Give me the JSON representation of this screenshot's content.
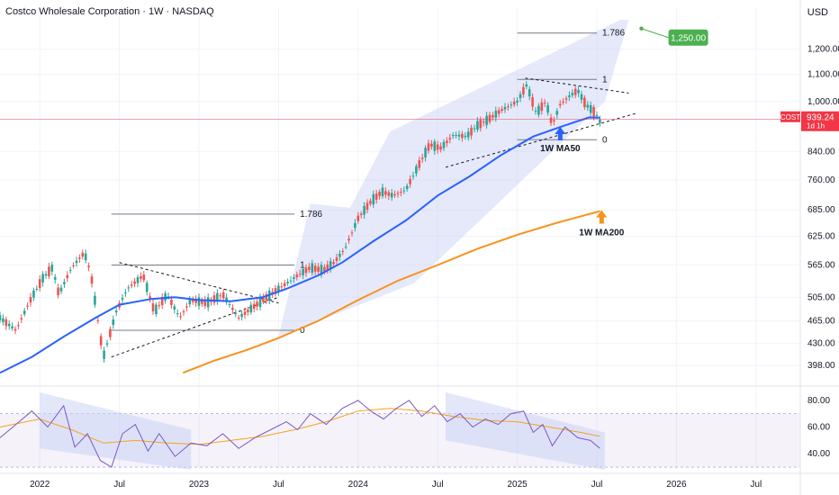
{
  "header": {
    "title": "Costco Wholesale Corporation · 1W · NASDAQ",
    "currency": "USD"
  },
  "colors": {
    "bull": "#26a69a",
    "bear": "#ef5350",
    "ma50": "#2962ff",
    "ma200": "#f7931a",
    "rsi": "#7e57c2",
    "rsi_ma": "#f7a21b",
    "channel": "#c5cff5",
    "price_line": "#f23645",
    "target_box": "#4caf50"
  },
  "chart_data": [
    {
      "type": "candlestick",
      "title": "Costco Wholesale Corporation · 1W · NASDAQ",
      "x_ticks": [
        "2022",
        "Jul",
        "2023",
        "Jul",
        "2024",
        "Jul",
        "2025",
        "Jul",
        "2026",
        "Jul"
      ],
      "y_ticks": [
        "1,200.00",
        "1,100.00",
        "1,000.00",
        "940.00",
        "840.00",
        "760.00",
        "685.00",
        "625.00",
        "565.00",
        "505.00",
        "465.00",
        "430.00",
        "398.00"
      ],
      "y_scale": "log",
      "ylim": [
        375,
        1330
      ],
      "x_range": [
        "2021-09",
        "2026-10"
      ],
      "current_price": {
        "symbol": "COST",
        "value": "939.24",
        "timer": "1d 1h"
      },
      "fib_levels_1": [
        {
          "label": "0",
          "price": 450
        },
        {
          "label": "1",
          "price": 565
        },
        {
          "label": "1.786",
          "price": 675
        }
      ],
      "fib_levels_2": [
        {
          "label": "0",
          "price": 875
        },
        {
          "label": "1",
          "price": 1080
        },
        {
          "label": "1.786",
          "price": 1270
        }
      ],
      "target": {
        "label": "1,250.00",
        "price": 1250
      },
      "annotations": [
        {
          "text": "1W MA50"
        },
        {
          "text": "1W MA200"
        }
      ],
      "ma50_path": [
        [
          2021.75,
          388
        ],
        [
          2021.95,
          410
        ],
        [
          2022.15,
          440
        ],
        [
          2022.35,
          470
        ],
        [
          2022.5,
          492
        ],
        [
          2022.7,
          502
        ],
        [
          2022.85,
          505
        ],
        [
          2023.0,
          500
        ],
        [
          2023.2,
          498
        ],
        [
          2023.4,
          505
        ],
        [
          2023.55,
          520
        ],
        [
          2023.75,
          545
        ],
        [
          2023.9,
          570
        ],
        [
          2024.1,
          615
        ],
        [
          2024.3,
          660
        ],
        [
          2024.5,
          720
        ],
        [
          2024.7,
          770
        ],
        [
          2024.9,
          830
        ],
        [
          2025.1,
          885
        ],
        [
          2025.3,
          920
        ],
        [
          2025.45,
          946
        ],
        [
          2025.52,
          945
        ]
      ],
      "ma200_path": [
        [
          2022.9,
          388
        ],
        [
          2023.1,
          405
        ],
        [
          2023.3,
          420
        ],
        [
          2023.5,
          438
        ],
        [
          2023.75,
          465
        ],
        [
          2024.0,
          500
        ],
        [
          2024.25,
          535
        ],
        [
          2024.5,
          565
        ],
        [
          2024.75,
          598
        ],
        [
          2025.0,
          628
        ],
        [
          2025.25,
          655
        ],
        [
          2025.52,
          682
        ]
      ],
      "candle_path": [
        [
          2021.75,
          470
        ],
        [
          2021.85,
          450
        ],
        [
          2021.95,
          505
        ],
        [
          2022.02,
          540
        ],
        [
          2022.08,
          560
        ],
        [
          2022.12,
          510
        ],
        [
          2022.2,
          560
        ],
        [
          2022.28,
          590
        ],
        [
          2022.32,
          550
        ],
        [
          2022.4,
          410
        ],
        [
          2022.48,
          480
        ],
        [
          2022.55,
          520
        ],
        [
          2022.65,
          545
        ],
        [
          2022.72,
          480
        ],
        [
          2022.8,
          510
        ],
        [
          2022.88,
          470
        ],
        [
          2022.95,
          500
        ],
        [
          2023.05,
          495
        ],
        [
          2023.15,
          510
        ],
        [
          2023.25,
          470
        ],
        [
          2023.35,
          490
        ],
        [
          2023.45,
          510
        ],
        [
          2023.55,
          530
        ],
        [
          2023.62,
          545
        ],
        [
          2023.7,
          560
        ],
        [
          2023.78,
          555
        ],
        [
          2023.85,
          570
        ],
        [
          2023.92,
          600
        ],
        [
          2024.0,
          665
        ],
        [
          2024.08,
          705
        ],
        [
          2024.15,
          730
        ],
        [
          2024.22,
          720
        ],
        [
          2024.3,
          735
        ],
        [
          2024.38,
          800
        ],
        [
          2024.45,
          860
        ],
        [
          2024.52,
          850
        ],
        [
          2024.6,
          890
        ],
        [
          2024.68,
          885
        ],
        [
          2024.75,
          920
        ],
        [
          2024.82,
          940
        ],
        [
          2024.9,
          970
        ],
        [
          2025.0,
          1000
        ],
        [
          2025.06,
          1060
        ],
        [
          2025.12,
          960
        ],
        [
          2025.18,
          1000
        ],
        [
          2025.22,
          920
        ],
        [
          2025.27,
          990
        ],
        [
          2025.33,
          1020
        ],
        [
          2025.38,
          1040
        ],
        [
          2025.43,
          990
        ],
        [
          2025.48,
          965
        ],
        [
          2025.52,
          939
        ]
      ]
    },
    {
      "type": "line",
      "ylabel": "",
      "y_ticks": [
        "80.00",
        "60.00",
        "40.00"
      ],
      "ylim": [
        28,
        88
      ],
      "rsi_path": [
        [
          2021.75,
          52
        ],
        [
          2021.85,
          62
        ],
        [
          2021.95,
          72
        ],
        [
          2022.05,
          60
        ],
        [
          2022.15,
          76
        ],
        [
          2022.22,
          45
        ],
        [
          2022.3,
          55
        ],
        [
          2022.38,
          35
        ],
        [
          2022.45,
          30
        ],
        [
          2022.52,
          55
        ],
        [
          2022.6,
          62
        ],
        [
          2022.68,
          42
        ],
        [
          2022.75,
          55
        ],
        [
          2022.85,
          38
        ],
        [
          2022.95,
          48
        ],
        [
          2023.05,
          46
        ],
        [
          2023.15,
          55
        ],
        [
          2023.25,
          44
        ],
        [
          2023.35,
          52
        ],
        [
          2023.45,
          58
        ],
        [
          2023.55,
          64
        ],
        [
          2023.62,
          58
        ],
        [
          2023.7,
          70
        ],
        [
          2023.8,
          62
        ],
        [
          2023.9,
          74
        ],
        [
          2024.0,
          80
        ],
        [
          2024.08,
          72
        ],
        [
          2024.16,
          66
        ],
        [
          2024.24,
          74
        ],
        [
          2024.32,
          80
        ],
        [
          2024.4,
          68
        ],
        [
          2024.48,
          76
        ],
        [
          2024.56,
          64
        ],
        [
          2024.64,
          70
        ],
        [
          2024.72,
          60
        ],
        [
          2024.8,
          66
        ],
        [
          2024.88,
          62
        ],
        [
          2024.96,
          70
        ],
        [
          2025.04,
          72
        ],
        [
          2025.1,
          56
        ],
        [
          2025.16,
          62
        ],
        [
          2025.22,
          46
        ],
        [
          2025.3,
          60
        ],
        [
          2025.38,
          52
        ],
        [
          2025.46,
          50
        ],
        [
          2025.52,
          44
        ]
      ],
      "rsi_ma_path": [
        [
          2021.75,
          60
        ],
        [
          2022.0,
          66
        ],
        [
          2022.2,
          58
        ],
        [
          2022.4,
          48
        ],
        [
          2022.6,
          50
        ],
        [
          2022.8,
          48
        ],
        [
          2023.0,
          47
        ],
        [
          2023.2,
          50
        ],
        [
          2023.4,
          53
        ],
        [
          2023.6,
          58
        ],
        [
          2023.8,
          64
        ],
        [
          2024.0,
          72
        ],
        [
          2024.2,
          74
        ],
        [
          2024.4,
          72
        ],
        [
          2024.6,
          68
        ],
        [
          2024.8,
          65
        ],
        [
          2025.0,
          64
        ],
        [
          2025.2,
          60
        ],
        [
          2025.4,
          56
        ],
        [
          2025.52,
          53
        ]
      ]
    }
  ]
}
